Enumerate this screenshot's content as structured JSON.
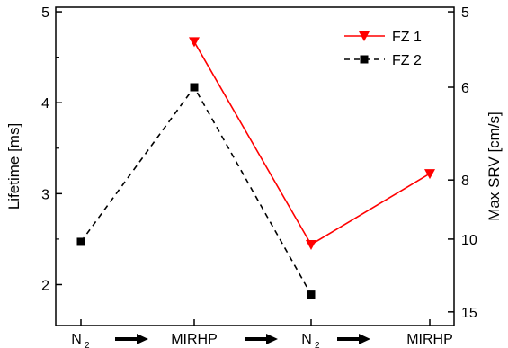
{
  "chart_data": {
    "type": "line",
    "categories": [
      {
        "main": "N",
        "sub": "2"
      },
      {
        "main": "MIRHP",
        "sub": ""
      },
      {
        "main": "N",
        "sub": "2"
      },
      {
        "main": "MIRHP",
        "sub": ""
      }
    ],
    "ylabel": "Lifetime [ms]",
    "y2label": "Max SRV [cm/s]",
    "ylim": [
      1.55,
      5.05
    ],
    "yticks": [
      2,
      3,
      4,
      5
    ],
    "y2ticks": [
      {
        "label": "5",
        "lifetime": 5.0
      },
      {
        "label": "6",
        "lifetime": 4.17
      },
      {
        "label": "8",
        "lifetime": 3.15
      },
      {
        "label": "10",
        "lifetime": 2.5
      },
      {
        "label": "15",
        "lifetime": 1.7
      }
    ],
    "series": [
      {
        "name": "FZ 1",
        "color": "#ff0000",
        "marker": "triangle-down",
        "dash": false,
        "values": [
          null,
          4.67,
          2.44,
          3.22
        ]
      },
      {
        "name": "FZ 2",
        "color": "#000000",
        "marker": "square",
        "dash": true,
        "values": [
          2.47,
          4.17,
          1.89,
          null
        ]
      }
    ],
    "legend_position": "top-right"
  }
}
